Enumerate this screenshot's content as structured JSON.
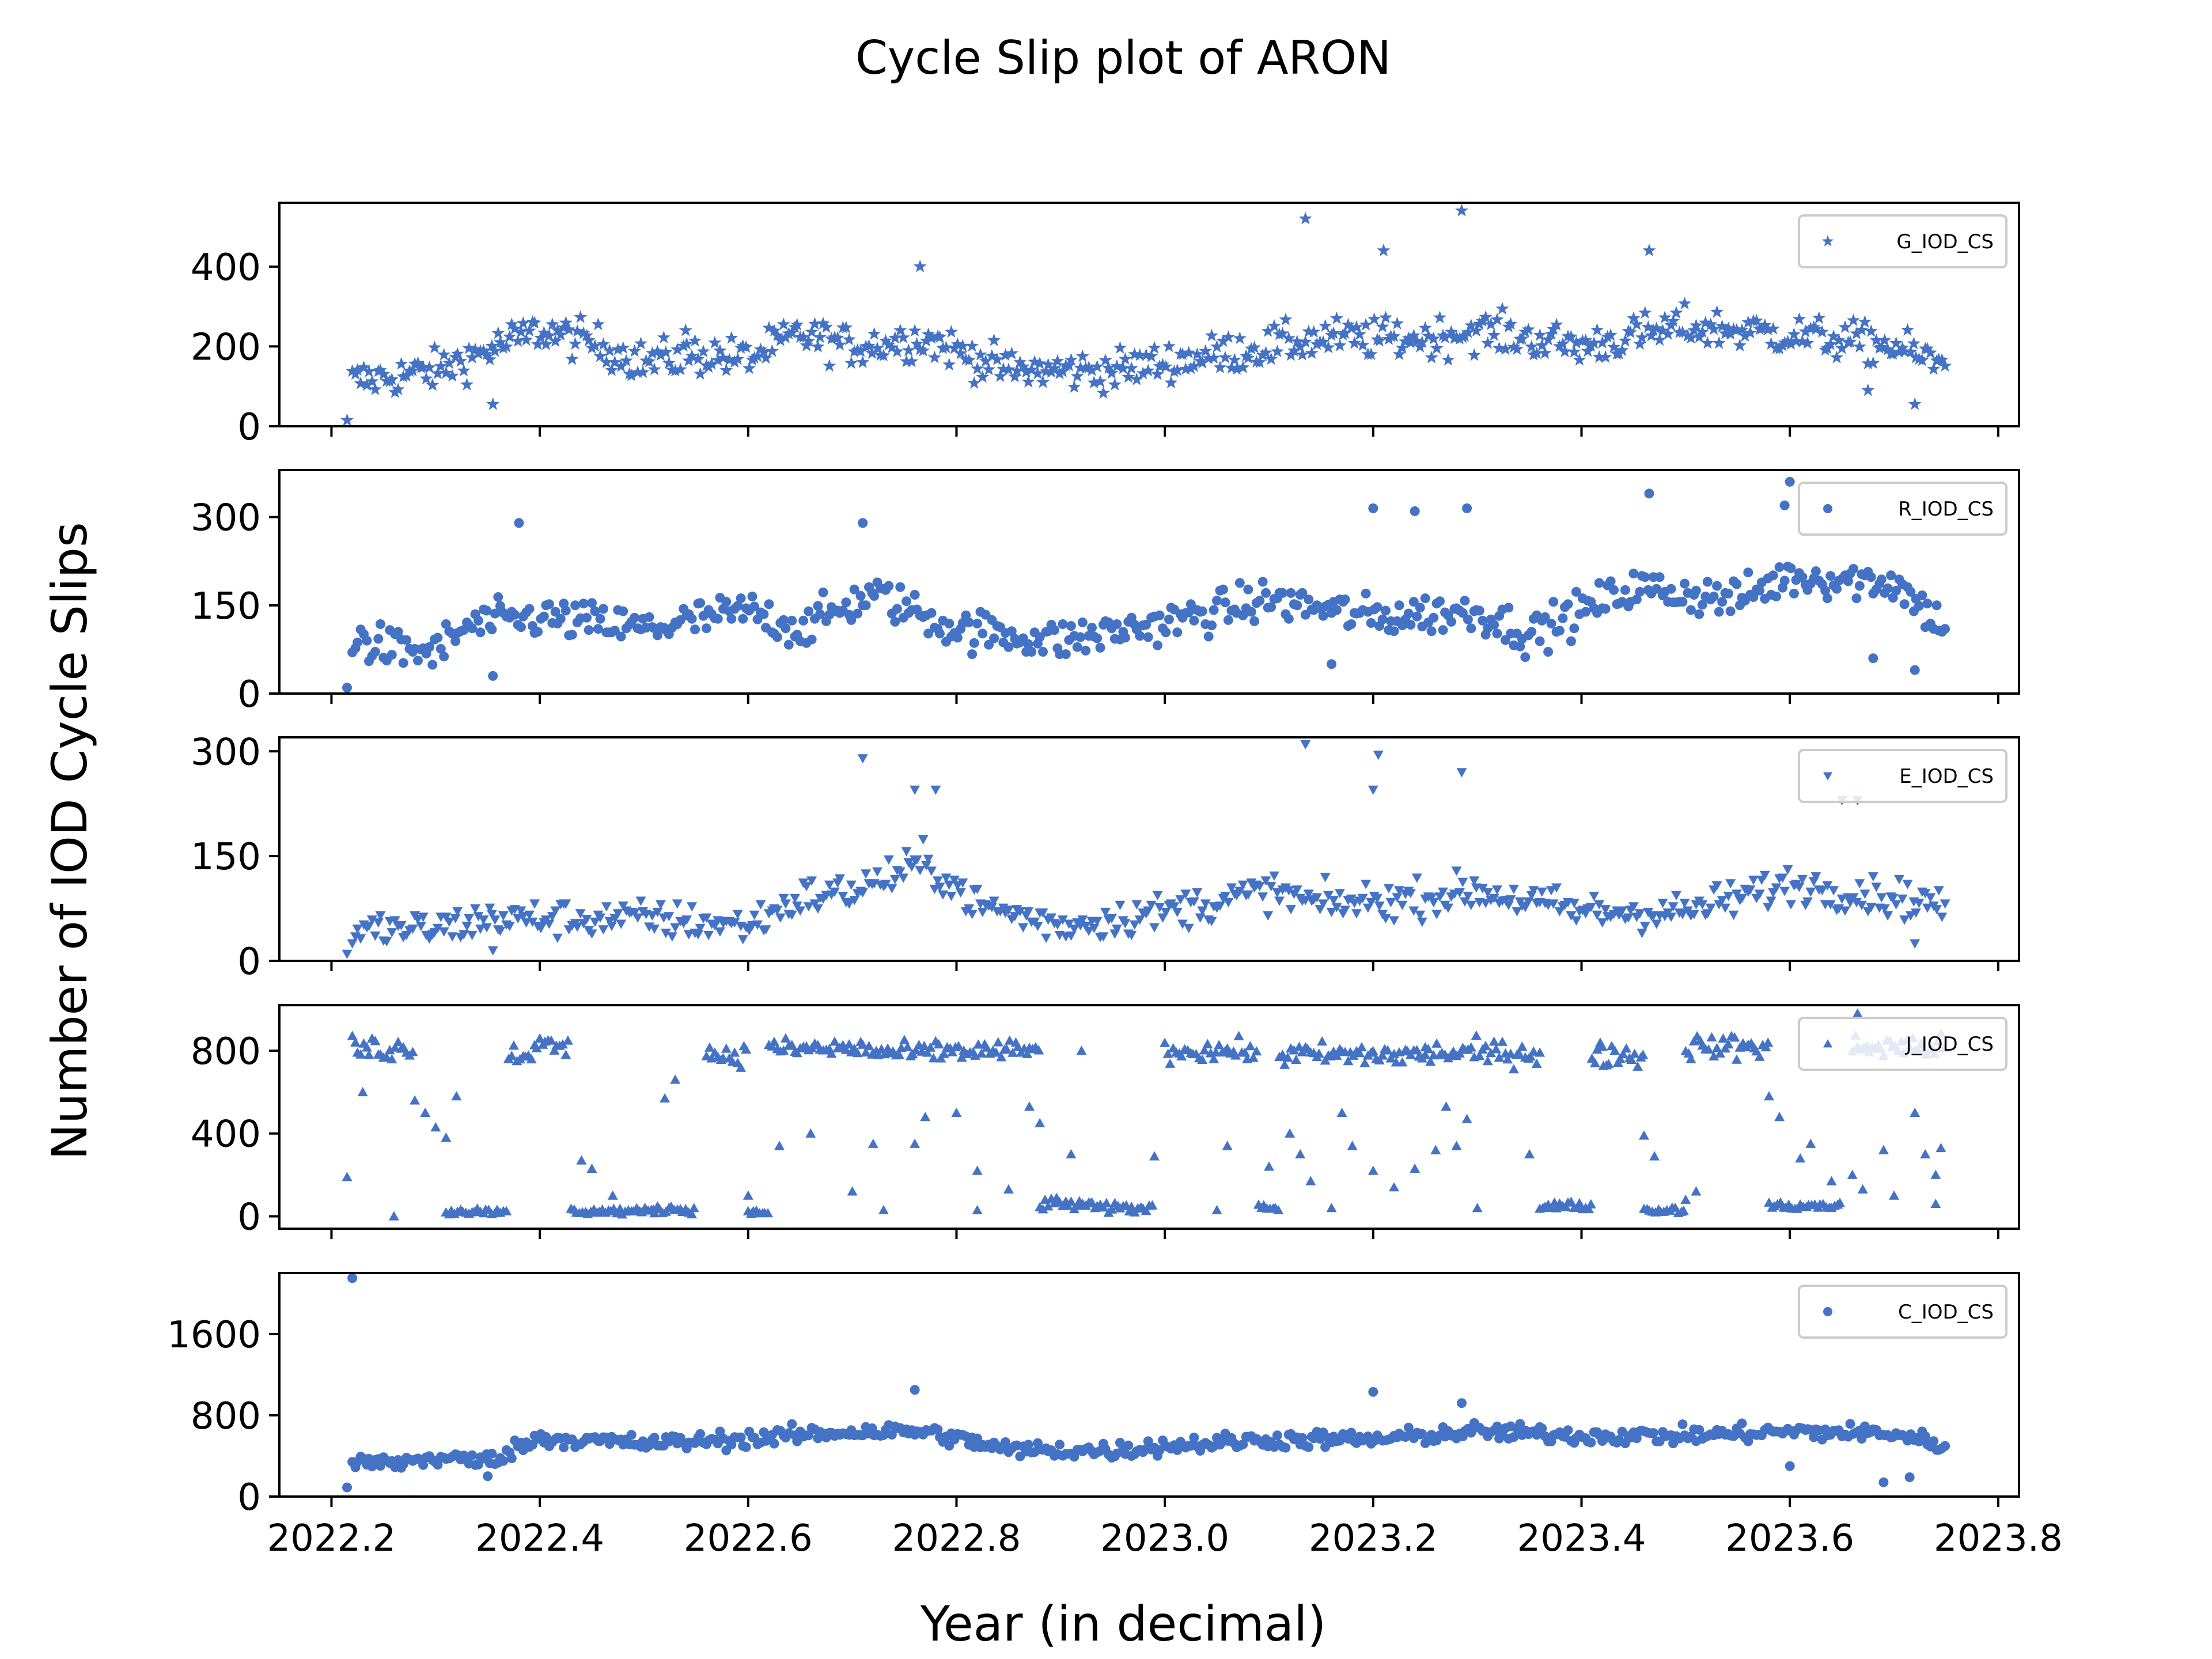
{
  "title": "Cycle Slip plot of ARON",
  "xlabel": "Year (in decimal)",
  "ylabel": "Number of IOD Cycle Slips",
  "marker_color": "#4472c4",
  "chart_data": [
    {
      "type": "scatter",
      "series": [
        {
          "name": "G_IOD_CS",
          "marker": "star",
          "x": [],
          "y": []
        }
      ],
      "ylim": [
        0,
        560
      ],
      "yticks": [
        0,
        200,
        400
      ],
      "xlim": [
        2022.15,
        2023.82
      ],
      "xticks": [
        2022.2,
        2022.4,
        2022.6,
        2022.8,
        2023.0,
        2023.2,
        2023.4,
        2023.6,
        2023.8
      ],
      "legend": "top-right",
      "grid": false,
      "trend": [
        [
          2022.21,
          110
        ],
        [
          2022.26,
          125
        ],
        [
          2022.3,
          140
        ],
        [
          2022.35,
          190
        ],
        [
          2022.4,
          240
        ],
        [
          2022.45,
          210
        ],
        [
          2022.5,
          160
        ],
        [
          2022.55,
          180
        ],
        [
          2022.6,
          170
        ],
        [
          2022.65,
          230
        ],
        [
          2022.7,
          200
        ],
        [
          2022.77,
          220
        ],
        [
          2022.85,
          140
        ],
        [
          2022.95,
          140
        ],
        [
          2023.0,
          160
        ],
        [
          2023.05,
          180
        ],
        [
          2023.15,
          220
        ],
        [
          2023.25,
          220
        ],
        [
          2023.3,
          240
        ],
        [
          2023.4,
          200
        ],
        [
          2023.5,
          250
        ],
        [
          2023.6,
          230
        ],
        [
          2023.7,
          200
        ],
        [
          2023.75,
          150
        ]
      ],
      "spread": 65,
      "extras": [
        [
          2022.215,
          15
        ],
        [
          2022.355,
          55
        ],
        [
          2023.135,
          520
        ],
        [
          2023.285,
          540
        ],
        [
          2023.21,
          440
        ],
        [
          2022.765,
          400
        ],
        [
          2023.675,
          90
        ],
        [
          2023.72,
          55
        ],
        [
          2023.465,
          440
        ],
        [
          2022.54,
          240
        ]
      ]
    },
    {
      "type": "scatter",
      "series": [
        {
          "name": "R_IOD_CS",
          "marker": "circle",
          "x": [],
          "y": []
        }
      ],
      "ylim": [
        0,
        380
      ],
      "yticks": [
        0,
        150,
        300
      ],
      "xlim": [
        2022.15,
        2023.82
      ],
      "xticks": [
        2022.2,
        2022.4,
        2022.6,
        2022.8,
        2023.0,
        2023.2,
        2023.4,
        2023.6,
        2023.8
      ],
      "legend": "top-right",
      "grid": false,
      "trend": [
        [
          2022.21,
          100
        ],
        [
          2022.26,
          75
        ],
        [
          2022.3,
          70
        ],
        [
          2022.33,
          115
        ],
        [
          2022.4,
          130
        ],
        [
          2022.5,
          110
        ],
        [
          2022.6,
          140
        ],
        [
          2022.65,
          110
        ],
        [
          2022.72,
          170
        ],
        [
          2022.8,
          110
        ],
        [
          2022.9,
          90
        ],
        [
          2023.0,
          120
        ],
        [
          2023.1,
          160
        ],
        [
          2023.2,
          130
        ],
        [
          2023.3,
          140
        ],
        [
          2023.35,
          100
        ],
        [
          2023.45,
          180
        ],
        [
          2023.55,
          160
        ],
        [
          2023.6,
          200
        ],
        [
          2023.7,
          190
        ],
        [
          2023.75,
          110
        ]
      ],
      "spread": 45,
      "extras": [
        [
          2022.215,
          10
        ],
        [
          2022.355,
          30
        ],
        [
          2022.38,
          290
        ],
        [
          2023.2,
          315
        ],
        [
          2023.24,
          310
        ],
        [
          2023.29,
          315
        ],
        [
          2023.465,
          340
        ],
        [
          2023.6,
          360
        ],
        [
          2023.595,
          320
        ],
        [
          2022.71,
          290
        ],
        [
          2023.72,
          40
        ],
        [
          2023.68,
          60
        ],
        [
          2023.16,
          50
        ]
      ]
    },
    {
      "type": "scatter",
      "series": [
        {
          "name": "E_IOD_CS",
          "marker": "triangle-down",
          "x": [],
          "y": []
        }
      ],
      "ylim": [
        0,
        320
      ],
      "yticks": [
        0,
        150,
        300
      ],
      "xlim": [
        2022.15,
        2023.82
      ],
      "xticks": [
        2022.2,
        2022.4,
        2022.6,
        2022.8,
        2023.0,
        2023.2,
        2023.4,
        2023.6,
        2023.8
      ],
      "legend": "top-right",
      "grid": false,
      "trend": [
        [
          2022.21,
          35
        ],
        [
          2022.25,
          45
        ],
        [
          2022.3,
          45
        ],
        [
          2022.35,
          60
        ],
        [
          2022.5,
          60
        ],
        [
          2022.6,
          50
        ],
        [
          2022.65,
          90
        ],
        [
          2022.7,
          100
        ],
        [
          2022.77,
          140
        ],
        [
          2022.82,
          80
        ],
        [
          2022.9,
          50
        ],
        [
          2023.0,
          70
        ],
        [
          2023.1,
          100
        ],
        [
          2023.15,
          80
        ],
        [
          2023.25,
          90
        ],
        [
          2023.3,
          100
        ],
        [
          2023.4,
          70
        ],
        [
          2023.5,
          70
        ],
        [
          2023.6,
          110
        ],
        [
          2023.7,
          90
        ],
        [
          2023.75,
          80
        ]
      ],
      "spread": 35,
      "extras": [
        [
          2022.215,
          10
        ],
        [
          2022.71,
          290
        ],
        [
          2023.135,
          310
        ],
        [
          2023.205,
          295
        ],
        [
          2023.2,
          245
        ],
        [
          2022.76,
          245
        ],
        [
          2022.78,
          245
        ],
        [
          2023.285,
          270
        ],
        [
          2023.65,
          230
        ],
        [
          2023.665,
          230
        ],
        [
          2023.72,
          25
        ],
        [
          2022.355,
          15
        ]
      ]
    },
    {
      "type": "scatter",
      "series": [
        {
          "name": "J_IOD_CS",
          "marker": "triangle-up",
          "x": [],
          "y": []
        }
      ],
      "ylim": [
        -60,
        1020
      ],
      "yticks": [
        0,
        400,
        800
      ],
      "xlim": [
        2022.15,
        2023.82
      ],
      "xticks": [
        2022.2,
        2022.4,
        2022.6,
        2022.8,
        2023.0,
        2023.2,
        2023.4,
        2023.6,
        2023.8
      ],
      "legend": "top-right",
      "grid": false,
      "segments": [
        [
          2022.22,
          2022.28,
          810,
          70
        ],
        [
          2022.31,
          2022.37,
          25,
          20
        ],
        [
          2022.37,
          2022.4,
          790,
          60
        ],
        [
          2022.4,
          2022.43,
          820,
          70
        ],
        [
          2022.43,
          2022.51,
          25,
          20
        ],
        [
          2022.51,
          2022.55,
          35,
          25
        ],
        [
          2022.56,
          2022.6,
          780,
          60
        ],
        [
          2022.6,
          2022.62,
          20,
          15
        ],
        [
          2022.62,
          2022.72,
          810,
          60
        ],
        [
          2022.72,
          2022.78,
          790,
          60
        ],
        [
          2022.78,
          2022.88,
          800,
          60
        ],
        [
          2022.88,
          2022.93,
          60,
          35
        ],
        [
          2022.93,
          2022.99,
          40,
          30
        ],
        [
          2023.0,
          2023.09,
          800,
          60
        ],
        [
          2023.09,
          2023.11,
          40,
          20
        ],
        [
          2023.11,
          2023.25,
          780,
          70
        ],
        [
          2023.25,
          2023.36,
          790,
          70
        ],
        [
          2023.36,
          2023.41,
          50,
          30
        ],
        [
          2023.41,
          2023.46,
          780,
          70
        ],
        [
          2023.46,
          2023.5,
          30,
          20
        ],
        [
          2023.5,
          2023.58,
          820,
          70
        ],
        [
          2023.58,
          2023.65,
          50,
          25
        ],
        [
          2023.66,
          2023.75,
          820,
          70
        ]
      ],
      "extras": [
        [
          2022.215,
          190
        ],
        [
          2022.23,
          600
        ],
        [
          2022.26,
          0
        ],
        [
          2022.28,
          560
        ],
        [
          2022.29,
          500
        ],
        [
          2022.3,
          430
        ],
        [
          2022.31,
          380
        ],
        [
          2022.32,
          580
        ],
        [
          2022.44,
          270
        ],
        [
          2022.45,
          230
        ],
        [
          2022.47,
          100
        ],
        [
          2022.52,
          570
        ],
        [
          2022.53,
          660
        ],
        [
          2022.6,
          100
        ],
        [
          2022.63,
          340
        ],
        [
          2022.66,
          400
        ],
        [
          2022.7,
          120
        ],
        [
          2022.72,
          350
        ],
        [
          2022.73,
          30
        ],
        [
          2022.76,
          350
        ],
        [
          2022.77,
          480
        ],
        [
          2022.8,
          500
        ],
        [
          2022.82,
          220
        ],
        [
          2022.82,
          30
        ],
        [
          2022.85,
          130
        ],
        [
          2022.87,
          530
        ],
        [
          2022.88,
          450
        ],
        [
          2022.91,
          300
        ],
        [
          2022.92,
          800
        ],
        [
          2022.99,
          290
        ],
        [
          2023.05,
          30
        ],
        [
          2023.06,
          340
        ],
        [
          2023.1,
          240
        ],
        [
          2023.12,
          400
        ],
        [
          2023.13,
          300
        ],
        [
          2023.14,
          170
        ],
        [
          2023.16,
          40
        ],
        [
          2023.17,
          500
        ],
        [
          2023.18,
          340
        ],
        [
          2023.2,
          220
        ],
        [
          2023.22,
          140
        ],
        [
          2023.24,
          230
        ],
        [
          2023.26,
          320
        ],
        [
          2023.27,
          530
        ],
        [
          2023.28,
          340
        ],
        [
          2023.29,
          470
        ],
        [
          2023.3,
          40
        ],
        [
          2023.35,
          300
        ],
        [
          2023.42,
          820
        ],
        [
          2023.46,
          390
        ],
        [
          2023.47,
          290
        ],
        [
          2023.5,
          80
        ],
        [
          2023.51,
          120
        ],
        [
          2023.58,
          580
        ],
        [
          2023.59,
          480
        ],
        [
          2023.61,
          280
        ],
        [
          2023.62,
          350
        ],
        [
          2023.64,
          170
        ],
        [
          2023.66,
          200
        ],
        [
          2023.67,
          130
        ],
        [
          2023.69,
          320
        ],
        [
          2023.7,
          100
        ],
        [
          2023.72,
          500
        ],
        [
          2023.73,
          300
        ],
        [
          2023.74,
          200
        ],
        [
          2023.745,
          330
        ],
        [
          2023.74,
          60
        ],
        [
          2023.665,
          980
        ]
      ]
    },
    {
      "type": "scatter",
      "series": [
        {
          "name": "C_IOD_CS",
          "marker": "circle",
          "x": [],
          "y": []
        }
      ],
      "ylim": [
        0,
        2200
      ],
      "yticks": [
        0,
        800,
        1600
      ],
      "xlim": [
        2022.15,
        2023.82
      ],
      "xticks": [
        2022.2,
        2022.4,
        2022.6,
        2022.8,
        2023.0,
        2023.2,
        2023.4,
        2023.6,
        2023.8
      ],
      "legend": "top-right",
      "grid": false,
      "trend": [
        [
          2022.21,
          330
        ],
        [
          2022.26,
          330
        ],
        [
          2022.3,
          380
        ],
        [
          2022.35,
          350
        ],
        [
          2022.4,
          580
        ],
        [
          2022.5,
          520
        ],
        [
          2022.6,
          570
        ],
        [
          2022.7,
          640
        ],
        [
          2022.77,
          640
        ],
        [
          2022.85,
          460
        ],
        [
          2022.95,
          450
        ],
        [
          2023.0,
          500
        ],
        [
          2023.1,
          560
        ],
        [
          2023.2,
          560
        ],
        [
          2023.3,
          640
        ],
        [
          2023.4,
          600
        ],
        [
          2023.5,
          600
        ],
        [
          2023.6,
          640
        ],
        [
          2023.7,
          620
        ],
        [
          2023.75,
          500
        ]
      ],
      "spread": 110,
      "extras": [
        [
          2022.22,
          2150
        ],
        [
          2022.215,
          90
        ],
        [
          2022.76,
          1050
        ],
        [
          2023.2,
          1030
        ],
        [
          2023.285,
          920
        ],
        [
          2023.69,
          140
        ],
        [
          2023.715,
          190
        ],
        [
          2023.6,
          300
        ],
        [
          2022.35,
          200
        ]
      ]
    }
  ],
  "xtick_labels": [
    "2022.2",
    "2022.4",
    "2022.6",
    "2022.8",
    "2023.0",
    "2023.2",
    "2023.4",
    "2023.6",
    "2023.8"
  ]
}
